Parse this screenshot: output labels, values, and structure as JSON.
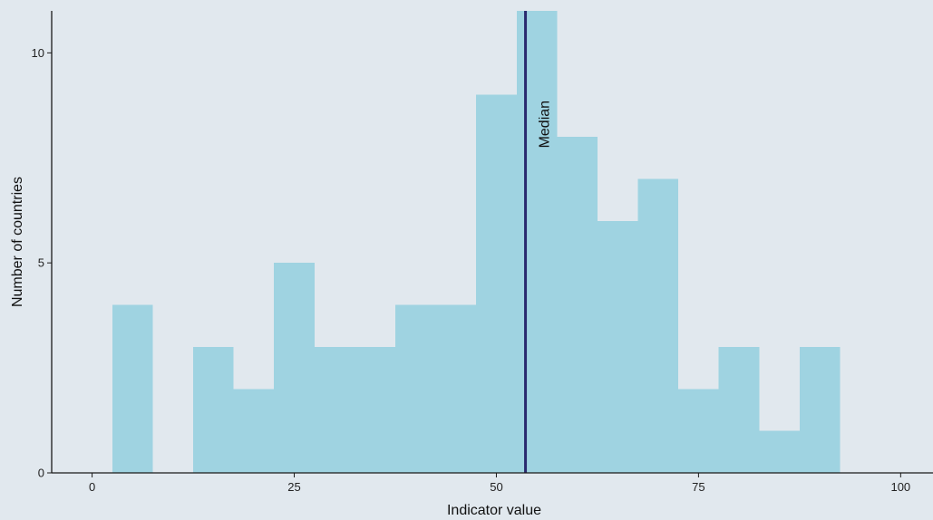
{
  "chart_data": {
    "type": "bar",
    "subtype": "histogram",
    "bin_width": 5,
    "bins": [
      {
        "x0": 2.5,
        "x1": 7.5,
        "count": 4
      },
      {
        "x0": 7.5,
        "x1": 12.5,
        "count": 0
      },
      {
        "x0": 12.5,
        "x1": 17.5,
        "count": 3
      },
      {
        "x0": 17.5,
        "x1": 22.5,
        "count": 2
      },
      {
        "x0": 22.5,
        "x1": 27.5,
        "count": 5
      },
      {
        "x0": 27.5,
        "x1": 32.5,
        "count": 3
      },
      {
        "x0": 32.5,
        "x1": 37.5,
        "count": 3
      },
      {
        "x0": 37.5,
        "x1": 42.5,
        "count": 4
      },
      {
        "x0": 42.5,
        "x1": 47.5,
        "count": 4
      },
      {
        "x0": 47.5,
        "x1": 52.5,
        "count": 9
      },
      {
        "x0": 52.5,
        "x1": 57.5,
        "count": 11
      },
      {
        "x0": 57.5,
        "x1": 62.5,
        "count": 8
      },
      {
        "x0": 62.5,
        "x1": 67.5,
        "count": 6
      },
      {
        "x0": 67.5,
        "x1": 72.5,
        "count": 7
      },
      {
        "x0": 72.5,
        "x1": 77.5,
        "count": 2
      },
      {
        "x0": 77.5,
        "x1": 82.5,
        "count": 3
      },
      {
        "x0": 82.5,
        "x1": 87.5,
        "count": 1
      },
      {
        "x0": 87.5,
        "x1": 92.5,
        "count": 3
      }
    ],
    "median": 53.6,
    "median_label": "Median",
    "xlabel": "Indicator value",
    "ylabel": "Number of countries",
    "xlim": [
      -5,
      104
    ],
    "ylim": [
      0,
      11
    ],
    "x_ticks": [
      0,
      25,
      50,
      75,
      100
    ],
    "y_ticks": [
      0,
      5,
      10
    ],
    "grid": false,
    "colors": {
      "background": "#e1e8ee",
      "bar": "#9fd3e1",
      "median_line": "#2a2a6e",
      "axis": "#1a1a1a"
    }
  }
}
